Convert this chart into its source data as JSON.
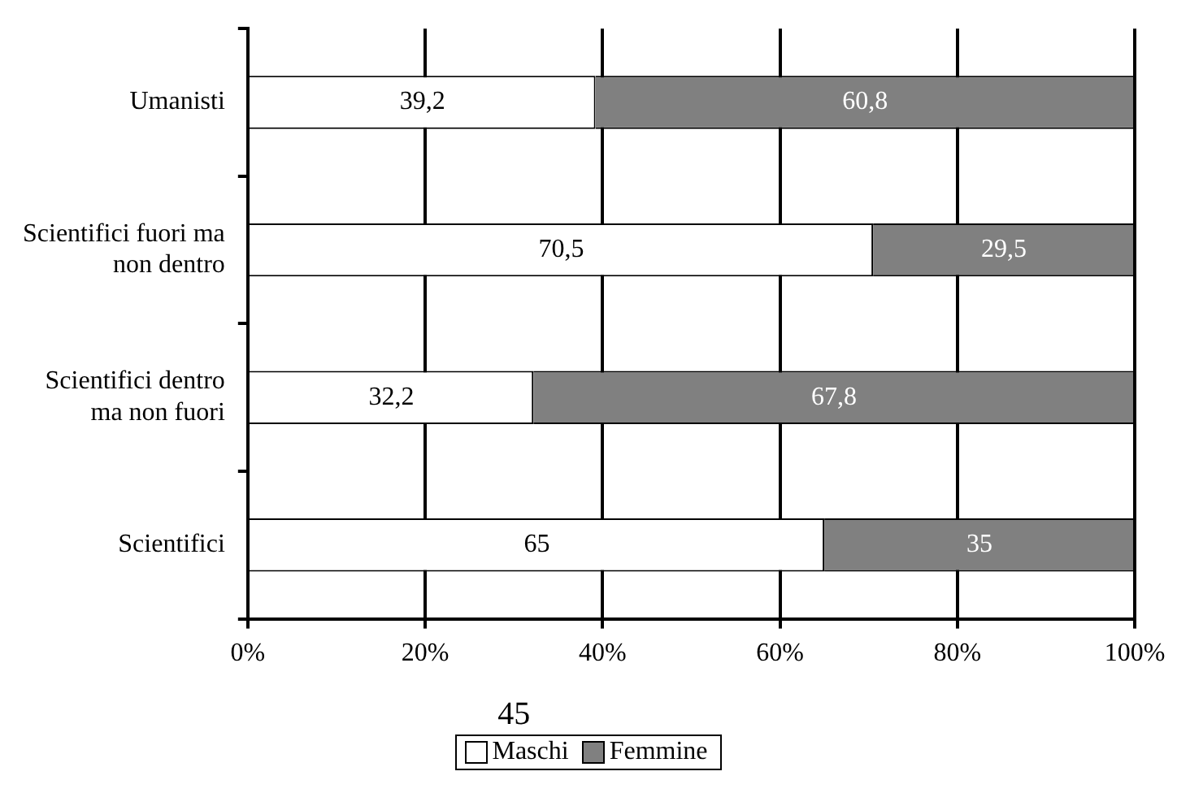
{
  "chart_data": {
    "type": "bar",
    "orientation": "horizontal",
    "stacked": true,
    "categories": [
      "Umanisti",
      "Scientifici fuori ma non dentro",
      "Scientifici dentro ma non fuori",
      "Scientifici"
    ],
    "series": [
      {
        "name": "Maschi",
        "color": "#ffffff",
        "values": [
          39.2,
          70.5,
          32.2,
          65
        ],
        "value_labels": [
          "39,2",
          "70,5",
          "32,2",
          "65"
        ]
      },
      {
        "name": "Femmine",
        "color": "#808080",
        "values": [
          60.8,
          29.5,
          67.8,
          35
        ],
        "value_labels": [
          "60,8",
          "29,5",
          "67,8",
          "35"
        ]
      }
    ],
    "xlim": [
      0,
      100
    ],
    "xticks": [
      {
        "value": 0,
        "label": "0%"
      },
      {
        "value": 20,
        "label": "20%"
      },
      {
        "value": 40,
        "label": "40%"
      },
      {
        "value": 60,
        "label": "60%"
      },
      {
        "value": 80,
        "label": "80%"
      },
      {
        "value": 100,
        "label": "100%"
      }
    ],
    "grid": "x",
    "legend": "bottom",
    "annotations": [
      "45"
    ]
  }
}
